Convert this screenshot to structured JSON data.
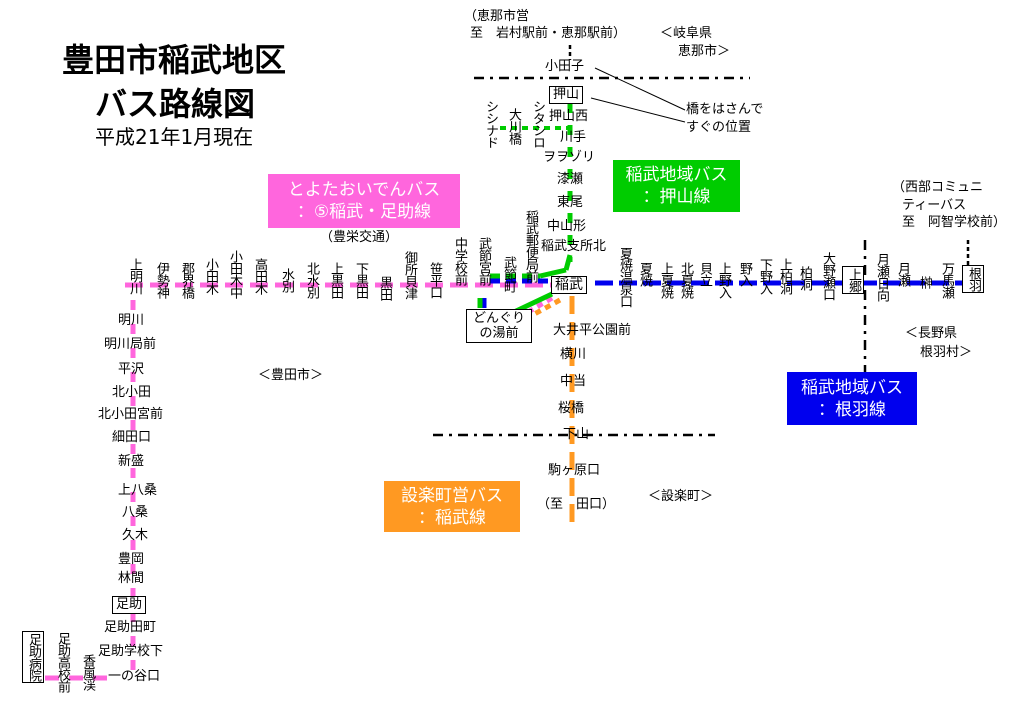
{
  "title": {
    "line1": "豊田市稲武地区",
    "line2": "バス路線図",
    "date": "平成21年1月現在"
  },
  "colors": {
    "toyota_oiden": "#ff66dd",
    "oshiyama": "#00cc00",
    "nebane": "#0000ee",
    "shitara": "#ff9922"
  },
  "routes": {
    "toyota_oiden": {
      "line1": "とよたおいでんバス",
      "line2": "：⑤稲武・足助線",
      "operator": "（豊栄交通）"
    },
    "oshiyama": {
      "line1": "稲武地域バス",
      "line2": "：押山線"
    },
    "nebane": {
      "line1": "稲武地域バス",
      "line2": "：根羽線"
    },
    "shitara": {
      "line1": "設楽町営バス",
      "line2": "：稲武線"
    }
  },
  "west_stops": [
    "上明川",
    "伊勢神",
    "郡界橋",
    "小田木",
    "小田木中",
    "高田木",
    "水別",
    "北水別",
    "上黒田",
    "下黒田",
    "黒田",
    "御所貝津",
    "笹平口",
    "中学校前",
    "武節宮前",
    "武節町",
    "稲武郵便局前"
  ],
  "hub": "稲武",
  "east_stops": [
    "夏焼温泉口",
    "夏焼",
    "上夏焼",
    "北夏焼",
    "貝立",
    "上野入",
    "野入",
    "下野入",
    "上柏洞",
    "柏洞",
    "大野瀬口",
    "上郷",
    "月瀬日向",
    "月瀬",
    "榊",
    "万馬瀬",
    "根羽"
  ],
  "south_asuke_stops": [
    "明川",
    "明川局前",
    "平沢",
    "北小田",
    "北小田宮前",
    "細田口",
    "新盛",
    "上八桑",
    "八桑",
    "久木",
    "豊岡",
    "林間",
    "足助",
    "足助田町",
    "足助学校下",
    "一の谷口"
  ],
  "asuke_branch": [
    "香嵐渓",
    "足助高校前",
    "足助病院"
  ],
  "north_stops": [
    "稲武支所北",
    "中山形",
    "東尾",
    "漆瀬",
    "ヲヲゾリ",
    "川手",
    "押山西",
    "押山",
    "小田子"
  ],
  "north_branch": [
    "シタシロ",
    "大川橋",
    "シシナド"
  ],
  "south_stops": [
    "大井平公園前",
    "横川",
    "中当",
    "桜橋",
    "下山",
    "駒ヶ原口"
  ],
  "dongurino": "どんぐりの湯前",
  "notes": {
    "ena_line1": "（恵那市営",
    "ena_line2": "至　岩村駅前・恵那駅前）",
    "gifu_line1": "＜岐阜県",
    "gifu_line2": "恵那市＞",
    "bridge_line1": "橋をはさんで",
    "bridge_line2": "すぐの位置",
    "seibu_line1": "（西部コミュニ",
    "seibu_line2": "ティーバス",
    "seibu_line3": "至　阿智学校前）",
    "nagano_line1": "＜長野県",
    "nagano_line2": "根羽村＞",
    "toyota_city": "＜豊田市＞",
    "shitara_town": "＜設楽町＞",
    "taguchi": "（至　田口）"
  }
}
